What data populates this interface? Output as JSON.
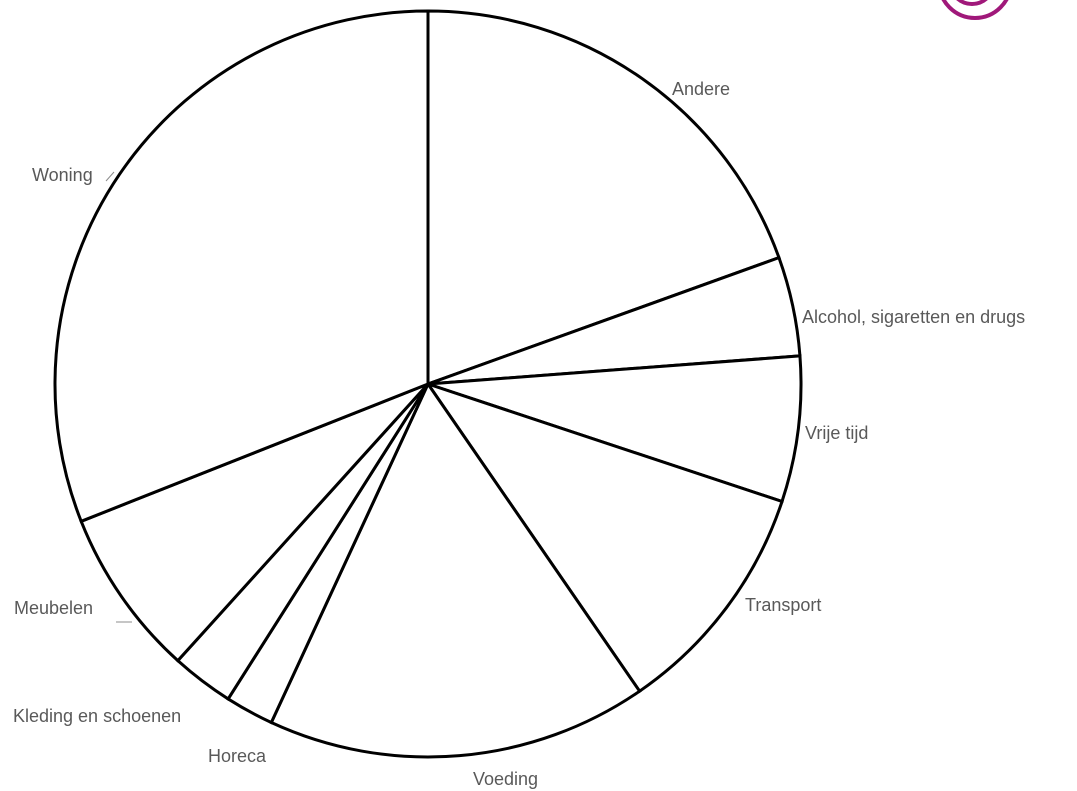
{
  "chart_data": {
    "type": "pie",
    "title": "",
    "start_angle_deg": 0,
    "direction": "clockwise",
    "slices": [
      {
        "label": "Andere",
        "value": 19.5
      },
      {
        "label": "Alcohol, sigaretten en drugs",
        "value": 4.3
      },
      {
        "label": "Vrije tijd",
        "value": 6.3
      },
      {
        "label": "Transport",
        "value": 10.3
      },
      {
        "label": "Voeding",
        "value": 16.5
      },
      {
        "label": "Horeca",
        "value": 2.1
      },
      {
        "label": "Kleding en schoenen",
        "value": 2.7
      },
      {
        "label": "Meubelen",
        "value": 7.3
      },
      {
        "label": "Woning",
        "value": 31.0
      }
    ],
    "colors": {
      "fill": "#ffffff",
      "stroke": "#000000",
      "label": "#595959"
    },
    "legend": "none"
  },
  "decoration": {
    "logo_color": "#a0187a"
  }
}
